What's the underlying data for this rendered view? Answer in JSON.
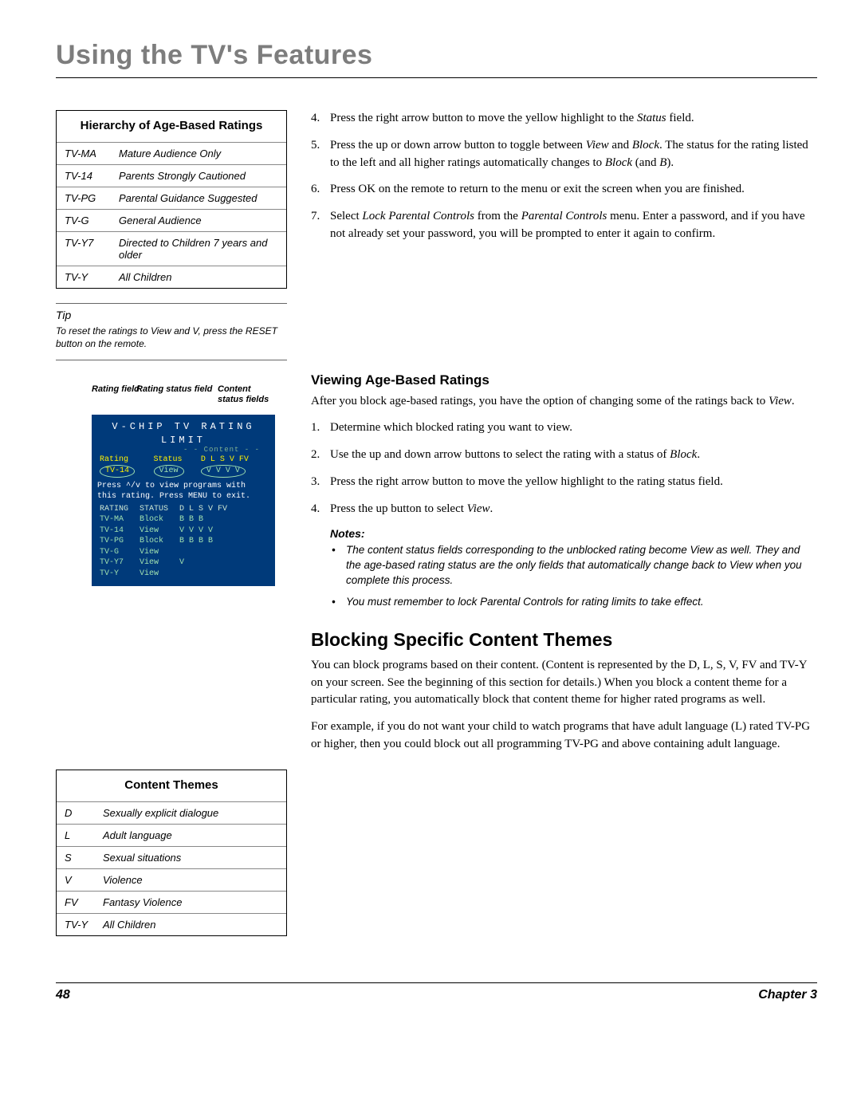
{
  "page_title": "Using the TV's Features",
  "hierarchy_table": {
    "header": "Hierarchy of Age-Based Ratings",
    "rows": [
      {
        "code": "TV-MA",
        "desc": "Mature Audience Only"
      },
      {
        "code": "TV-14",
        "desc": "Parents Strongly Cautioned"
      },
      {
        "code": "TV-PG",
        "desc": "Parental Guidance Suggested"
      },
      {
        "code": "TV-G",
        "desc": "General Audience"
      },
      {
        "code": "TV-Y7",
        "desc": "Directed to Children 7 years and older"
      },
      {
        "code": "TV-Y",
        "desc": "All Children"
      }
    ]
  },
  "tip": {
    "label": "Tip",
    "text": "To reset the ratings to View and V, press the RESET button on the remote."
  },
  "screen_labels": {
    "rating_field": "Rating field",
    "rating_status": "Rating status field",
    "content_status": "Content status fields"
  },
  "screen": {
    "title": "V-CHIP TV RATING LIMIT",
    "content_row": "- - Content - -",
    "header_row": {
      "r": "Rating",
      "s": "Status",
      "cols": "D  L  S  V  FV"
    },
    "sel_rating": "TV-14",
    "sel_status": "View",
    "sel_cols": "V  V  V  V",
    "help1": "Press ^/v to view programs with",
    "help2": "this rating. Press MENU to exit.",
    "rows": [
      {
        "r": "RATING",
        "s": "STATUS",
        "c": "D  L  S  V  FV"
      },
      {
        "r": "TV-MA",
        "s": "Block",
        "c": "   B  B  B"
      },
      {
        "r": "TV-14",
        "s": "View",
        "c": "V  V  V  V"
      },
      {
        "r": "TV-PG",
        "s": "Block",
        "c": "B  B  B  B"
      },
      {
        "r": "TV-G",
        "s": "View",
        "c": ""
      },
      {
        "r": "TV-Y7",
        "s": "View",
        "c": "            V"
      },
      {
        "r": "TV-Y",
        "s": "View",
        "c": ""
      }
    ]
  },
  "top_steps": [
    {
      "n": "4.",
      "t": "Press the right arrow button to move the yellow highlight to the <em>Status</em> field."
    },
    {
      "n": "5.",
      "t": "Press the up or down arrow button to toggle between <em>View</em> and <em>Block</em>. The status for the rating listed to the left and all higher ratings automatically changes to <em>Block</em> (and <em>B</em>)."
    },
    {
      "n": "6.",
      "t": "Press OK on the remote to return to the menu or exit the screen when you are finished."
    },
    {
      "n": "7.",
      "t": "Select <em>Lock Parental Controls</em> from the <em>Parental Controls</em> menu. Enter a password, and if you have not already set your password, you will be prompted to enter it again to confirm."
    }
  ],
  "viewing": {
    "heading": "Viewing Age-Based Ratings",
    "intro": "After you block age-based ratings, you have the option of changing some of the ratings back to <em>View</em>.",
    "steps": [
      {
        "n": "1.",
        "t": "Determine which blocked rating you want to view."
      },
      {
        "n": "2.",
        "t": "Use the up and down arrow buttons to select the rating with a status of <em>Block</em>."
      },
      {
        "n": "3.",
        "t": "Press the right arrow button to move the yellow highlight to the rating status field."
      },
      {
        "n": "4.",
        "t": "Press the up button to select <em>View</em>."
      }
    ],
    "notes_label": "Notes:",
    "notes": [
      "The content status fields corresponding to the unblocked rating become View as well. They and the age-based rating status are the only fields that automatically change back to View when you complete this process.",
      "You must remember to lock Parental Controls for rating limits to take effect."
    ]
  },
  "themes_table": {
    "header": "Content Themes",
    "rows": [
      {
        "code": "D",
        "desc": "Sexually explicit dialogue"
      },
      {
        "code": "L",
        "desc": "Adult language"
      },
      {
        "code": "S",
        "desc": "Sexual situations"
      },
      {
        "code": "V",
        "desc": "Violence"
      },
      {
        "code": "FV",
        "desc": "Fantasy Violence"
      },
      {
        "code": "TV-Y",
        "desc": "All Children"
      }
    ]
  },
  "blocking": {
    "heading": "Blocking Specific Content Themes",
    "p1": "You can block programs based on their content. (Content is represented by the D, L, S, V, FV and TV-Y on your screen. See the beginning of this section for details.) When you block a content theme for a particular rating, you automatically block that content theme for higher rated programs as well.",
    "p2": "For example, if you do not want your child to watch programs that have adult language (L) rated TV-PG or higher, then you could block out all programming TV-PG and above containing adult language."
  },
  "footer": {
    "page": "48",
    "chapter": "Chapter 3"
  }
}
